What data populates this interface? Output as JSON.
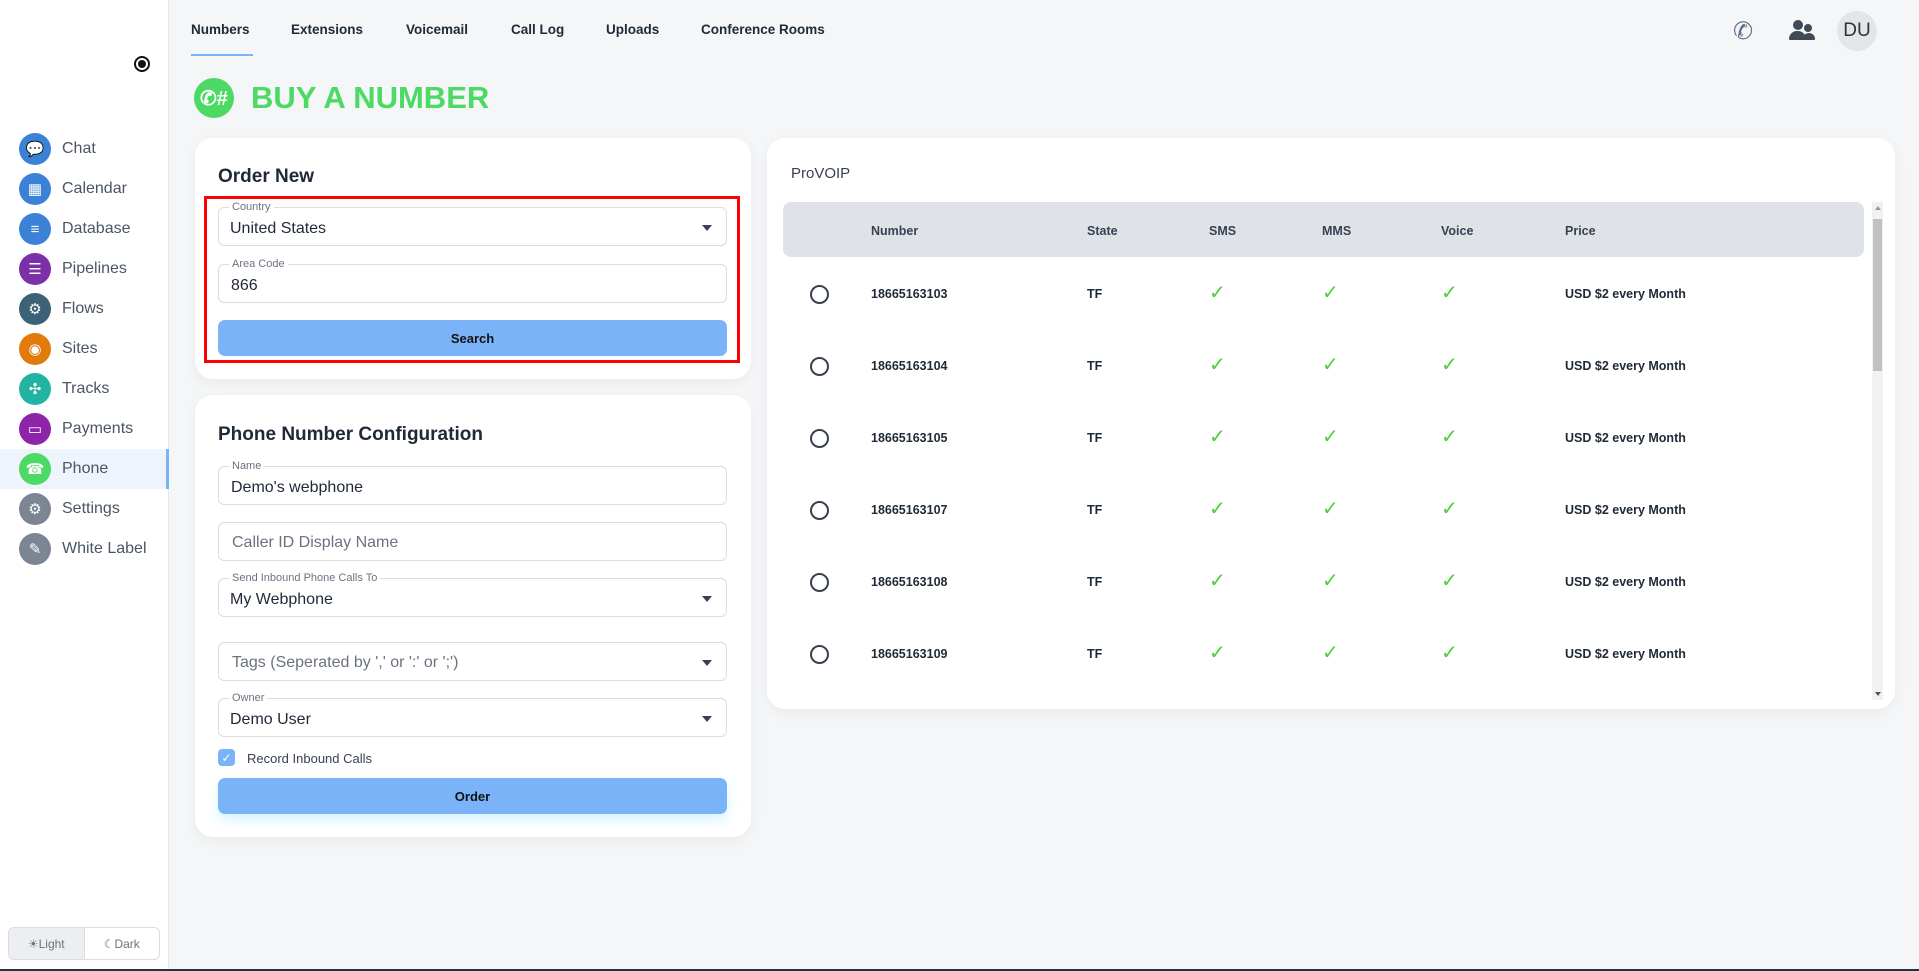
{
  "sidebar": {
    "items": [
      {
        "label": "Chat",
        "icon": "chat-icon",
        "color": "#3b82d6"
      },
      {
        "label": "Calendar",
        "icon": "calendar-icon",
        "color": "#3b82d6"
      },
      {
        "label": "Database",
        "icon": "database-icon",
        "color": "#3b82d6"
      },
      {
        "label": "Pipelines",
        "icon": "pipelines-icon",
        "color": "#7b2fa8"
      },
      {
        "label": "Flows",
        "icon": "flows-icon",
        "color": "#3d6177"
      },
      {
        "label": "Sites",
        "icon": "sites-icon",
        "color": "#e07b0c"
      },
      {
        "label": "Tracks",
        "icon": "tracks-icon",
        "color": "#22b3a3"
      },
      {
        "label": "Payments",
        "icon": "payments-icon",
        "color": "#8e24aa"
      },
      {
        "label": "Phone",
        "icon": "phone-icon",
        "color": "#4cd964",
        "active": true
      },
      {
        "label": "Settings",
        "icon": "settings-icon",
        "color": "#7c8593"
      },
      {
        "label": "White Label",
        "icon": "white-label-icon",
        "color": "#7c8593"
      }
    ]
  },
  "theme": {
    "light": "Light",
    "dark": "Dark"
  },
  "tabs": [
    "Numbers",
    "Extensions",
    "Voicemail",
    "Call Log",
    "Uploads",
    "Conference Rooms"
  ],
  "header": {
    "avatar": "DU"
  },
  "page_title": "BUY A NUMBER",
  "order_new": {
    "title": "Order New",
    "country_label": "Country",
    "country_value": "United States",
    "area_label": "Area Code",
    "area_value": "866",
    "search": "Search"
  },
  "config": {
    "title": "Phone Number Configuration",
    "name_label": "Name",
    "name_value": "Demo's webphone",
    "caller_id_placeholder": "Caller ID Display Name",
    "send_label": "Send Inbound Phone Calls To",
    "send_value": "My Webphone",
    "tags_placeholder": "Tags (Seperated by ',' or ':' or ';')",
    "owner_label": "Owner",
    "owner_value": "Demo User",
    "record_label": "Record Inbound Calls",
    "record_checked": true,
    "order": "Order"
  },
  "provider": {
    "title": "ProVOIP",
    "columns": [
      "Number",
      "State",
      "SMS",
      "MMS",
      "Voice",
      "Price"
    ],
    "rows": [
      {
        "number": "18665163103",
        "state": "TF",
        "sms": true,
        "mms": true,
        "voice": true,
        "price": "USD $2 every Month"
      },
      {
        "number": "18665163104",
        "state": "TF",
        "sms": true,
        "mms": true,
        "voice": true,
        "price": "USD $2 every Month"
      },
      {
        "number": "18665163105",
        "state": "TF",
        "sms": true,
        "mms": true,
        "voice": true,
        "price": "USD $2 every Month"
      },
      {
        "number": "18665163107",
        "state": "TF",
        "sms": true,
        "mms": true,
        "voice": true,
        "price": "USD $2 every Month"
      },
      {
        "number": "18665163108",
        "state": "TF",
        "sms": true,
        "mms": true,
        "voice": true,
        "price": "USD $2 every Month"
      },
      {
        "number": "18665163109",
        "state": "TF",
        "sms": true,
        "mms": true,
        "voice": true,
        "price": "USD $2 every Month"
      }
    ]
  },
  "colors": {
    "accent": "#7ab3f7",
    "title_green": "#4cd964",
    "check": "#4cd137",
    "highlight": "#ff0000"
  }
}
